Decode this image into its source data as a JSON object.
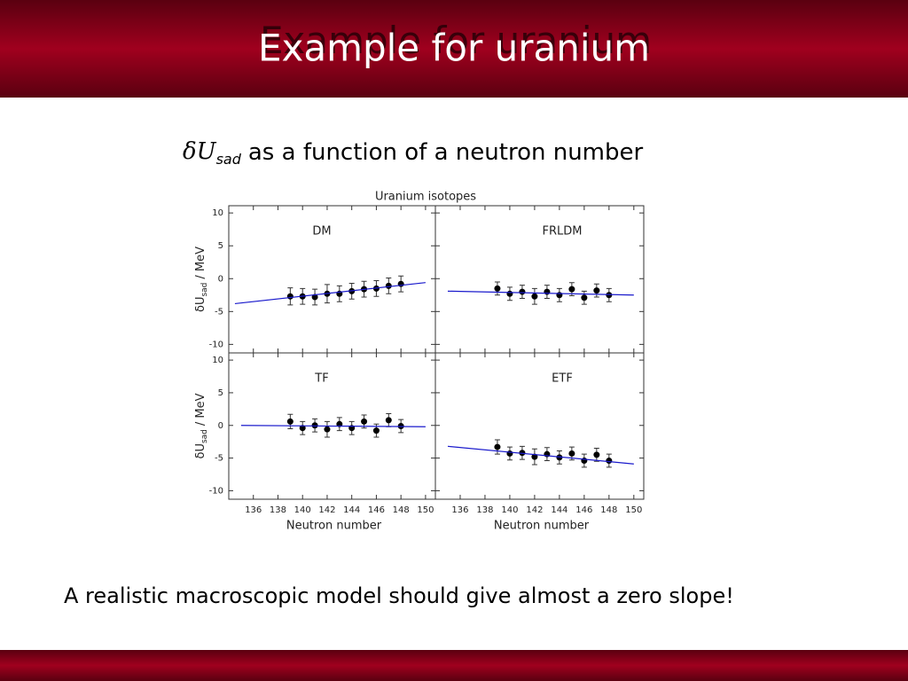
{
  "slide": {
    "title": "Example for uranium",
    "subtitle_symbol": "δU",
    "subtitle_subscript": "sad",
    "subtitle_text": "as a function of a neutron number",
    "note": "A realistic macroscopic model should give almost a zero slope!"
  },
  "figure": {
    "title": "Uranium isotopes",
    "ylabel_main": "δU",
    "ylabel_subscript": "sad",
    "ylabel_unit": "/ MeV",
    "xlabel": "Neutron number"
  },
  "chart_data": [
    {
      "type": "scatter",
      "title": "DM",
      "color": "#000000",
      "x": [
        139,
        140,
        141,
        142,
        143,
        144,
        145,
        146,
        147,
        148
      ],
      "values": [
        -2.7,
        -2.7,
        -2.8,
        -2.3,
        -2.3,
        -1.9,
        -1.6,
        -1.5,
        -1.1,
        -0.8
      ],
      "errors": [
        1.3,
        1.2,
        1.2,
        1.4,
        1.2,
        1.2,
        1.2,
        1.2,
        1.2,
        1.2
      ],
      "fit": {
        "x": [
          134.5,
          150
        ],
        "values": [
          -3.8,
          -0.6
        ],
        "color": "#1a1acc"
      },
      "xlim": [
        134,
        150.8
      ],
      "ylim": [
        -11.3,
        11.1
      ],
      "xticks": [
        136,
        138,
        140,
        142,
        144,
        146,
        148,
        150
      ],
      "yticks": [
        -10,
        -5,
        0,
        5,
        10
      ]
    },
    {
      "type": "scatter",
      "title": "FRLDM",
      "color": "#000000",
      "x": [
        139,
        140,
        141,
        142,
        143,
        144,
        145,
        146,
        147,
        148
      ],
      "values": [
        -1.5,
        -2.3,
        -2.0,
        -2.7,
        -2.0,
        -2.5,
        -1.6,
        -2.9,
        -1.8,
        -2.5
      ],
      "errors": [
        1.0,
        1.0,
        1.0,
        1.2,
        1.0,
        1.0,
        1.0,
        1.0,
        1.0,
        1.0
      ],
      "fit": {
        "x": [
          135,
          150
        ],
        "values": [
          -1.9,
          -2.5
        ],
        "color": "#1a1acc"
      },
      "xlim": [
        134,
        150.8
      ],
      "ylim": [
        -11.3,
        11.1
      ],
      "xticks": [
        136,
        138,
        140,
        142,
        144,
        146,
        148,
        150
      ],
      "yticks": [
        -10,
        -5,
        0,
        5,
        10
      ]
    },
    {
      "type": "scatter",
      "title": "TF",
      "color": "#000000",
      "x": [
        139,
        140,
        141,
        142,
        143,
        144,
        145,
        146,
        147,
        148
      ],
      "values": [
        0.6,
        -0.4,
        0.0,
        -0.6,
        0.2,
        -0.4,
        0.6,
        -0.8,
        0.8,
        -0.1
      ],
      "errors": [
        1.1,
        1.0,
        1.0,
        1.2,
        1.0,
        1.0,
        1.0,
        1.0,
        1.0,
        1.0
      ],
      "fit": {
        "x": [
          135,
          150
        ],
        "values": [
          0.0,
          -0.2
        ],
        "color": "#1a1acc"
      },
      "xlim": [
        134,
        150.8
      ],
      "ylim": [
        -11.3,
        11.1
      ],
      "xticks": [
        136,
        138,
        140,
        142,
        144,
        146,
        148,
        150
      ],
      "yticks": [
        -10,
        -5,
        0,
        5,
        10
      ]
    },
    {
      "type": "scatter",
      "title": "ETF",
      "color": "#000000",
      "x": [
        139,
        140,
        141,
        142,
        143,
        144,
        145,
        146,
        147,
        148
      ],
      "values": [
        -3.3,
        -4.3,
        -4.2,
        -4.8,
        -4.4,
        -4.9,
        -4.3,
        -5.4,
        -4.5,
        -5.4
      ],
      "errors": [
        1.1,
        1.0,
        1.0,
        1.2,
        1.0,
        1.0,
        1.0,
        1.0,
        1.0,
        1.0
      ],
      "fit": {
        "x": [
          135,
          150
        ],
        "values": [
          -3.2,
          -5.9
        ],
        "color": "#1a1acc"
      },
      "xlim": [
        134,
        150.8
      ],
      "ylim": [
        -11.3,
        11.1
      ],
      "xticks": [
        136,
        138,
        140,
        142,
        144,
        146,
        148,
        150
      ],
      "yticks": [
        -10,
        -5,
        0,
        5,
        10
      ]
    }
  ]
}
